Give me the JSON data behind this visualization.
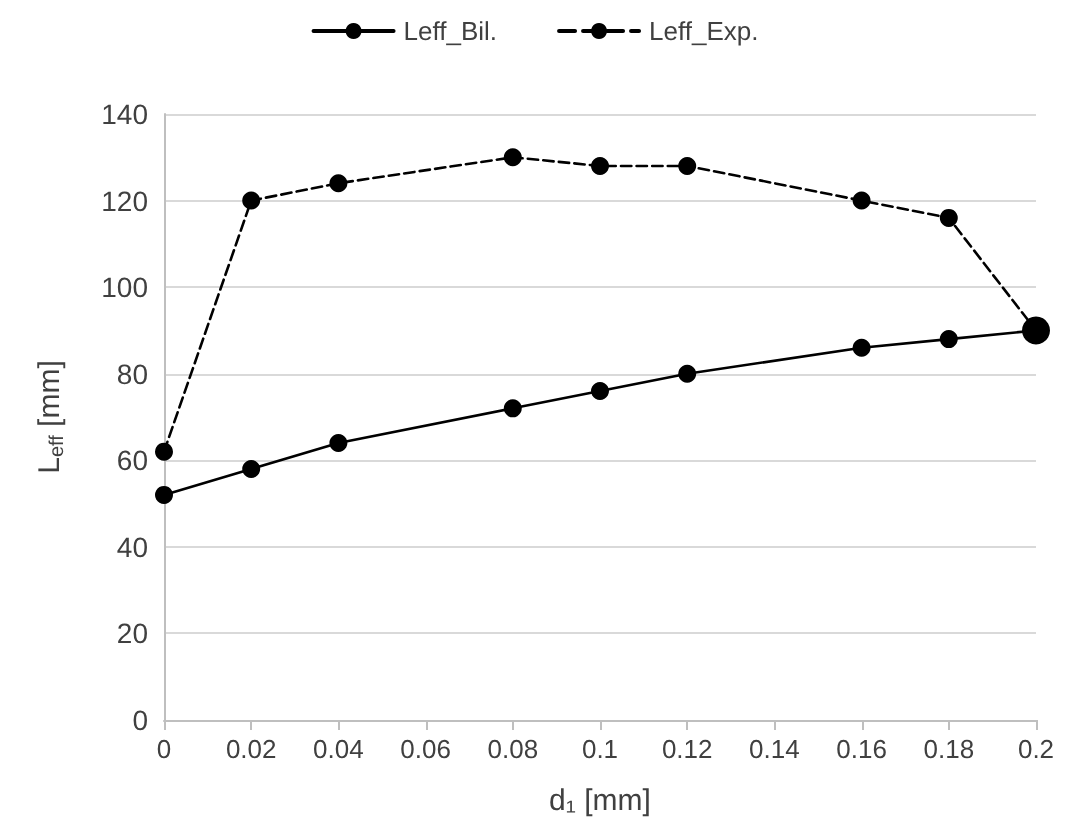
{
  "chart_data": {
    "type": "line",
    "xlabel": "d₁ [mm]",
    "ylabel": "L$_{eff}$ [mm]",
    "x": [
      0,
      0.02,
      0.04,
      0.08,
      0.1,
      0.12,
      0.16,
      0.18,
      0.2
    ],
    "series": [
      {
        "name": "Leff_Bil.",
        "color": "#000000",
        "values": [
          52,
          58,
          64,
          72,
          76,
          80,
          86,
          88,
          90
        ],
        "line_style": "solid"
      },
      {
        "name": "Leff_Exp.",
        "color": "#000000",
        "values": [
          62,
          120,
          124,
          130,
          128,
          128,
          120,
          116,
          90
        ],
        "line_style": "dashed"
      }
    ],
    "xlim": [
      0,
      0.2
    ],
    "xticks": [
      0,
      0.02,
      0.04,
      0.06,
      0.08,
      0.1,
      0.12,
      0.14,
      0.16,
      0.18,
      0.2
    ],
    "ylim": [
      0,
      140
    ],
    "yticks": [
      0,
      20,
      40,
      60,
      80,
      100,
      120,
      140
    ],
    "grid": "y",
    "legend": "top",
    "marker": "circle"
  }
}
